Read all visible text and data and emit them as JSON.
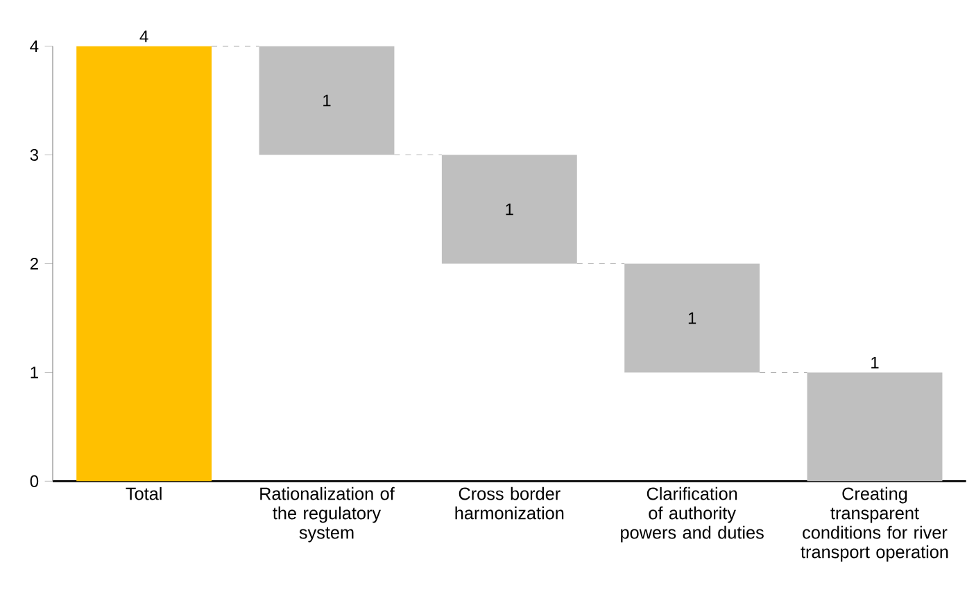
{
  "chart_data": {
    "type": "bar",
    "categories": [
      "Total",
      "Rationalization of the regulatory system",
      "Cross border harmonization",
      "Clarification of authority powers and duties",
      "Creating transparent conditions for river transport operation"
    ],
    "values": [
      4,
      1,
      1,
      1,
      1
    ],
    "base": [
      0,
      3,
      2,
      1,
      0
    ],
    "colors": [
      "#ffc000",
      "#bfbfbf",
      "#bfbfbf",
      "#bfbfbf",
      "#bfbfbf"
    ],
    "ylim": [
      0,
      4
    ],
    "yticks": [
      0,
      1,
      2,
      3,
      4
    ],
    "data_labels": true,
    "grid": false
  }
}
